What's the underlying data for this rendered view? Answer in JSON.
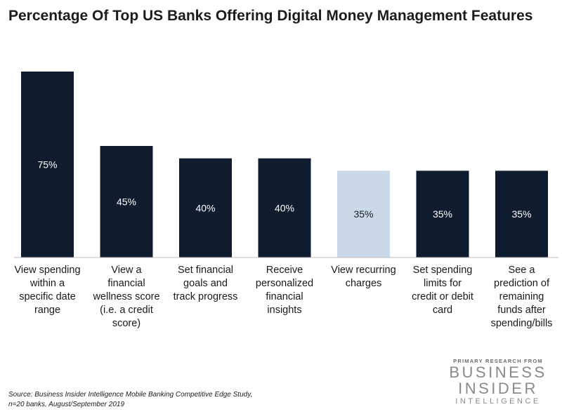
{
  "chart_data": {
    "type": "bar",
    "title": "Percentage Of Top US Banks Offering Digital Money Management Features",
    "categories": [
      "View spending within a specific date range",
      "View a financial wellness score (i.e. a credit score)",
      "Set financial goals and track progress",
      "Receive personalized financial insights",
      "View recurring charges",
      "Set spending limits for credit or debit card",
      "See a prediction of remaining funds after spending/bills"
    ],
    "category_lines": [
      [
        "View spending",
        "within a",
        "specific date",
        "range"
      ],
      [
        "View a",
        "financial",
        "wellness score",
        "(i.e. a credit",
        "score)"
      ],
      [
        "Set financial",
        "goals and",
        "track progress"
      ],
      [
        "Receive",
        "personalized",
        "financial",
        "insights"
      ],
      [
        "View recurring",
        "charges"
      ],
      [
        "Set spending",
        "limits for",
        "credit or debit",
        "card"
      ],
      [
        "See a",
        "prediction of",
        "remaining",
        "funds after",
        "spending/bills"
      ]
    ],
    "values": [
      75,
      45,
      40,
      40,
      35,
      35,
      35
    ],
    "value_labels": [
      "75%",
      "45%",
      "40%",
      "40%",
      "35%",
      "35%",
      "35%"
    ],
    "units": "%",
    "ylim": [
      0,
      75
    ],
    "grid": false,
    "legend": "none",
    "highlight_index": 4,
    "colors": {
      "bar": "#0f1c2e",
      "highlight": "#c9d9e8",
      "label_on_dark": "#ffffff",
      "label_on_light": "#1a1a1a"
    }
  },
  "footer": {
    "source_line1": "Source: Business Insider Intelligence Mobile Banking Competitive Edge Study,",
    "source_line2": "n=20 banks, August/September 2019"
  },
  "logo": {
    "pre": "PRIMARY RESEARCH FROM",
    "line1": "BUSINESS",
    "line2": "INSIDER",
    "line3": "INTELLIGENCE"
  }
}
